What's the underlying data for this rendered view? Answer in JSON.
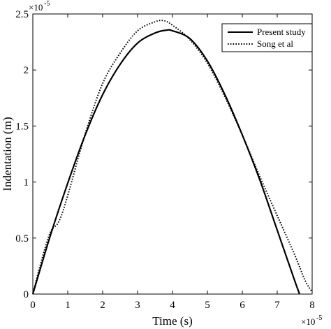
{
  "chart_data": {
    "type": "line",
    "xlabel": "Time (s)",
    "ylabel": "Indentation (m)",
    "x_multiplier_label": "×10",
    "x_multiplier_exp": "-5",
    "y_multiplier_label": "×10",
    "y_multiplier_exp": "-5",
    "xlim": [
      0,
      8
    ],
    "ylim": [
      0,
      2.5
    ],
    "x_ticks": [
      0,
      1,
      2,
      3,
      4,
      5,
      6,
      7,
      8
    ],
    "x_tick_labels": [
      "0",
      "1",
      "2",
      "3",
      "4",
      "5",
      "6",
      "7",
      "8"
    ],
    "y_ticks": [
      0,
      0.5,
      1,
      1.5,
      2,
      2.5
    ],
    "y_tick_labels": [
      "0",
      "0.5",
      "1",
      "1.5",
      "2",
      "2.5"
    ],
    "grid": false,
    "legend_position": "top-right",
    "series": [
      {
        "name": "Present study",
        "style": "solid",
        "color": "#000000",
        "x": [
          0,
          0.5,
          1,
          1.5,
          2,
          2.5,
          3,
          3.5,
          3.82,
          4,
          4.5,
          5,
          5.5,
          6,
          6.5,
          7,
          7.5,
          7.64
        ],
        "y": [
          0,
          0.52,
          0.99,
          1.42,
          1.78,
          2.05,
          2.24,
          2.33,
          2.355,
          2.35,
          2.28,
          2.08,
          1.78,
          1.42,
          1.02,
          0.57,
          0.12,
          0
        ]
      },
      {
        "name": "Song et al",
        "style": "dotted",
        "color": "#000000",
        "x": [
          0,
          0.25,
          0.5,
          0.75,
          1,
          1.5,
          2,
          2.5,
          3,
          3.5,
          3.75,
          4,
          4.5,
          5,
          5.5,
          6,
          6.5,
          7,
          7.5,
          7.8,
          8
        ],
        "y": [
          0,
          0.3,
          0.55,
          0.65,
          0.88,
          1.43,
          1.88,
          2.15,
          2.35,
          2.43,
          2.44,
          2.4,
          2.27,
          2.06,
          1.76,
          1.42,
          1.05,
          0.7,
          0.35,
          0.12,
          0.02
        ]
      }
    ]
  }
}
